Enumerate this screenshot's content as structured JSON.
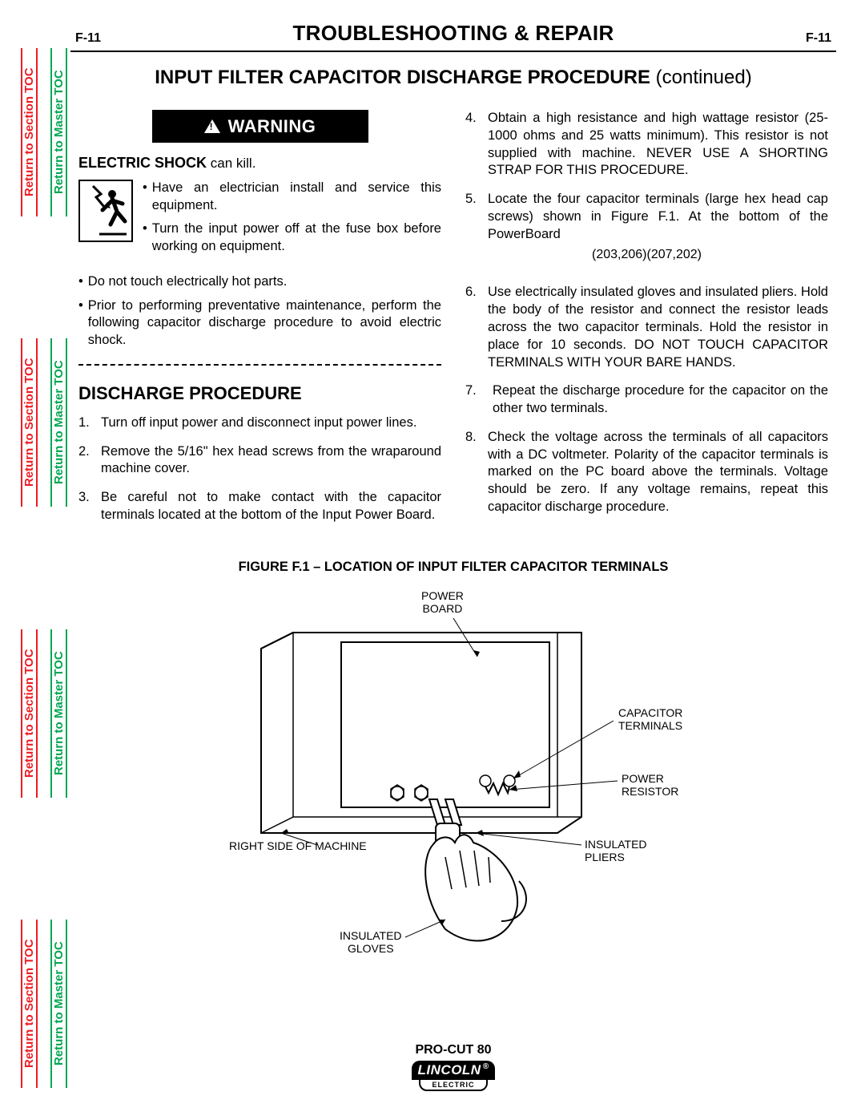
{
  "header": {
    "page_left": "F-11",
    "page_right": "F-11",
    "title": "TROUBLESHOOTING & REPAIR",
    "subtitle_main": "INPUT FILTER CAPACITOR DISCHARGE PROCEDURE",
    "subtitle_cont": " (continued)"
  },
  "side_links": {
    "section": "Return to Section TOC",
    "master": "Return to Master TOC"
  },
  "warning": {
    "label": "WARNING",
    "shock_bold": "ELECTRIC SHOCK",
    "shock_rest": " can kill.",
    "bullet1": "Have an electrician install and service this equipment.",
    "bullet2": "Turn the input power off at the fuse box before working on equipment.",
    "bullet3": "Do not touch electrically hot parts.",
    "bullet4": "Prior to performing preventative maintenance, perform the following capacitor discharge procedure to avoid electric shock."
  },
  "procedure": {
    "heading": "DISCHARGE PROCEDURE",
    "step1": "Turn off input power and disconnect input power lines.",
    "step2": "Remove the 5/16\" hex head screws from the wraparound machine cover.",
    "step3": "Be careful not to make contact with the capacitor terminals located at the bottom of the Input Power Board.",
    "step4": "Obtain a high resistance and high wattage resistor (25-1000 ohms and 25 watts minimum). This resistor is not supplied with machine. NEVER USE A SHORTING STRAP FOR THIS PROCEDURE.",
    "step5": "Locate the four capacitor terminals (large hex head cap screws) shown in Figure F.1. At the bottom of the PowerBoard",
    "step5_sub": "(203,206)(207,202)",
    "step6": "Use electrically insulated gloves and insulated pliers. Hold the body of the resistor and connect the resistor leads across the two capacitor terminals. Hold the resistor in place for 10 seconds. DO NOT TOUCH CAPACITOR TERMINALS WITH YOUR BARE HANDS.",
    "step7": "Repeat the discharge procedure for the capacitor on the other two terminals.",
    "step8": "Check the voltage across the terminals of all capacitors with a DC voltmeter. Polarity of the capacitor terminals is marked on the PC board above the terminals. Voltage should be zero. If any voltage remains, repeat this capacitor discharge procedure."
  },
  "figure": {
    "title": "FIGURE F.1 – LOCATION OF INPUT FILTER CAPACITOR TERMINALS",
    "labels": {
      "power_board": "POWER\nBOARD",
      "capacitor_terminals": "CAPACITOR\nTERMINALS",
      "power_resistor": "POWER\nRESISTOR",
      "insulated_pliers": "INSULATED\nPLIERS",
      "insulated_gloves": "INSULATED\nGLOVES",
      "right_side": "RIGHT SIDE OF MACHINE"
    }
  },
  "footer": {
    "model": "PRO-CUT 80",
    "brand": "LINCOLN",
    "brand_sub": "ELECTRIC"
  },
  "colors": {
    "red": "#ed1c24",
    "green": "#00a651",
    "black": "#000000",
    "white": "#ffffff"
  }
}
